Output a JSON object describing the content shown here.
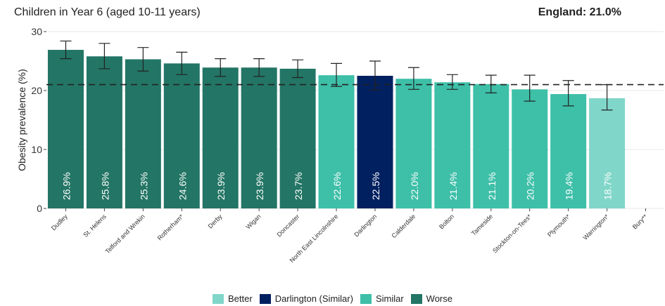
{
  "header": {
    "title": "Children in Year 6 (aged 10-11 years)",
    "benchmark_label": "England: 21.0%"
  },
  "colors": {
    "Better": "#80d6c9",
    "Darlington (Similar)": "#002060",
    "Similar": "#3ebfa8",
    "Worse": "#237565",
    "grid": "#e8e8e8",
    "axis": "#444444"
  },
  "chart_data": {
    "type": "bar",
    "ylabel": "Obesity prevalence (%)",
    "ylim": [
      0,
      30
    ],
    "yticks": [
      0,
      10,
      20,
      30
    ],
    "benchmark": 21.0,
    "categories": [
      "Dudley",
      "St. Helens",
      "Telford and Wrekin",
      "Rotherham*",
      "Derby",
      "Wigan",
      "Doncaster",
      "North East Lincolnshire",
      "Darlington",
      "Calderdale",
      "Bolton",
      "Tameside",
      "Stockton-on-Tees*",
      "Plymouth*",
      "Warrington*",
      "Bury**"
    ],
    "values": [
      26.9,
      25.8,
      25.3,
      24.6,
      23.9,
      23.9,
      23.7,
      22.6,
      22.5,
      22.0,
      21.4,
      21.1,
      20.2,
      19.4,
      18.7,
      null
    ],
    "labels": [
      "26.9%",
      "25.8%",
      "25.3%",
      "24.6%",
      "23.9%",
      "23.9%",
      "23.7%",
      "22.6%",
      "22.5%",
      "22.0%",
      "21.4%",
      "21.1%",
      "20.2%",
      "19.4%",
      "18.7%",
      ""
    ],
    "ci_low": [
      25.4,
      23.7,
      23.3,
      22.7,
      22.4,
      22.4,
      22.2,
      20.7,
      20.1,
      20.2,
      20.2,
      19.6,
      18.2,
      17.4,
      16.7,
      null
    ],
    "ci_high": [
      28.4,
      28.0,
      27.3,
      26.5,
      25.4,
      25.4,
      25.2,
      24.6,
      25.0,
      23.9,
      22.7,
      22.6,
      22.6,
      21.7,
      21.0,
      null
    ],
    "groups": [
      "Worse",
      "Worse",
      "Worse",
      "Worse",
      "Worse",
      "Worse",
      "Worse",
      "Similar",
      "Darlington (Similar)",
      "Similar",
      "Similar",
      "Similar",
      "Similar",
      "Similar",
      "Better",
      null
    ],
    "legend": [
      "Better",
      "Darlington (Similar)",
      "Similar",
      "Worse"
    ]
  }
}
